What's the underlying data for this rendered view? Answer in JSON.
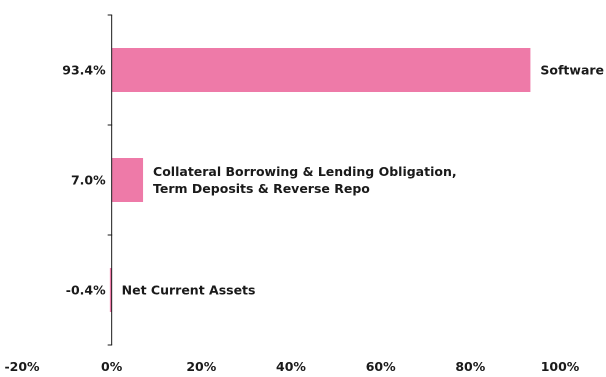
{
  "chart_data": {
    "type": "bar",
    "orientation": "horizontal",
    "title": "",
    "xlabel": "",
    "ylabel": "",
    "xlim": [
      -20,
      100
    ],
    "x_ticks": [
      -20,
      0,
      20,
      40,
      60,
      80,
      100
    ],
    "x_tick_labels": [
      "-20%",
      "0%",
      "20%",
      "40%",
      "60%",
      "80%",
      "100%"
    ],
    "grid": false,
    "legend": "none",
    "bar_color": "#ee7aa8",
    "categories": [
      {
        "label_lines": [
          "Software"
        ],
        "value": 93.4,
        "value_label": "93.4%"
      },
      {
        "label_lines": [
          "Collateral Borrowing & Lending Obligation,",
          "Term Deposits & Reverse Repo"
        ],
        "value": 7.0,
        "value_label": "7.0%"
      },
      {
        "label_lines": [
          "Net Current Assets"
        ],
        "value": -0.4,
        "value_label": "-0.4%"
      }
    ]
  }
}
